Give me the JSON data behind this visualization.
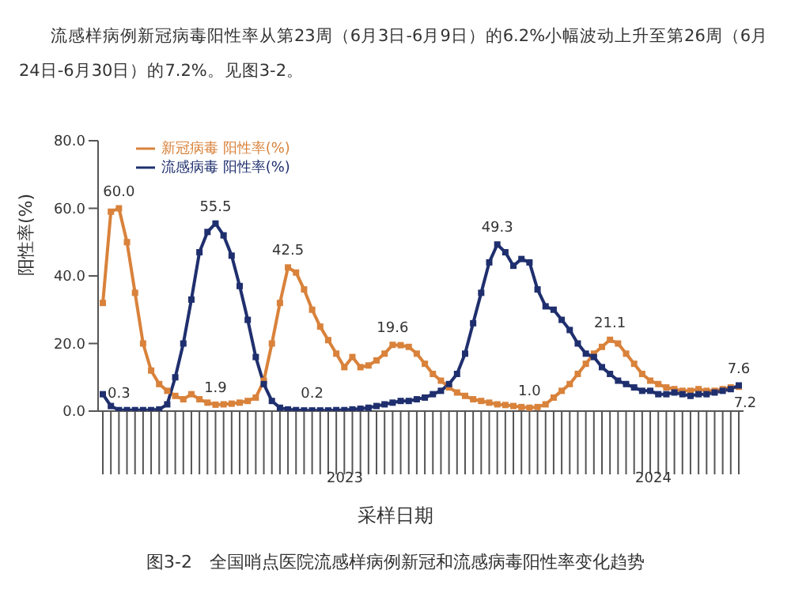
{
  "chart_data": {
    "type": "line",
    "title": "图3-2　全国哨点医院流感样病例新冠和流感病毒阳性率变化趋势",
    "xlabel": "采样日期",
    "ylabel": "阳性率(%)",
    "annotations": [
      "流感样病例新冠病毒阳性率从第23周（6月3日-6月9日）的6.2%小幅波动上升至第26周（6月24日-6月30日）的7.2%。见图3-2。",
      "2023",
      "2024"
    ],
    "categories": [
      null,
      null,
      null,
      null,
      null,
      null,
      null,
      null,
      null,
      null,
      null,
      null,
      null,
      null,
      null,
      null,
      null,
      null,
      null,
      null,
      null,
      null,
      null,
      null,
      null,
      null,
      null,
      null,
      null,
      null,
      null,
      null,
      null,
      null,
      null,
      null,
      null,
      null,
      null,
      null,
      null,
      null,
      null,
      null,
      null,
      null,
      null,
      null,
      null,
      null,
      null,
      null,
      null,
      null,
      null,
      null,
      null,
      null,
      null,
      null,
      null,
      null,
      null,
      null,
      null,
      null,
      null,
      null,
      null,
      null,
      null,
      null,
      null,
      null,
      null,
      null,
      null,
      null,
      null,
      null
    ],
    "series": [
      {
        "name": "新冠病毒 阳性率(%)",
        "color": "#d9823b",
        "values": [
          32,
          59,
          60,
          50,
          35,
          20,
          12,
          8,
          6,
          4.5,
          3.5,
          5,
          3.5,
          2.5,
          1.9,
          2,
          2.2,
          2.5,
          3,
          4,
          9,
          20,
          32,
          42.5,
          41,
          36,
          30,
          25,
          21,
          17,
          13,
          16,
          13,
          13.5,
          15,
          17,
          19.6,
          19.5,
          19,
          17,
          14,
          11,
          9,
          7,
          5.5,
          4.5,
          3.5,
          3,
          2.5,
          2,
          1.8,
          1.5,
          1.2,
          1.0,
          1.2,
          2,
          4,
          6,
          8,
          11,
          14,
          17,
          19,
          21.1,
          20,
          17,
          14,
          11,
          9,
          8,
          7,
          6.5,
          6,
          6,
          6.5,
          6,
          6,
          6.5,
          7,
          7.2
        ],
        "value_labels": [
          null,
          null,
          "60.0",
          null,
          null,
          null,
          null,
          null,
          null,
          null,
          null,
          null,
          null,
          null,
          "1.9",
          null,
          null,
          null,
          null,
          null,
          null,
          null,
          null,
          "42.5",
          null,
          null,
          null,
          null,
          null,
          null,
          null,
          null,
          null,
          null,
          null,
          null,
          "19.6",
          null,
          null,
          null,
          null,
          null,
          null,
          null,
          null,
          null,
          null,
          null,
          null,
          null,
          null,
          null,
          null,
          "1.0",
          null,
          null,
          null,
          null,
          null,
          null,
          null,
          null,
          null,
          "21.1",
          null,
          null,
          null,
          null,
          null,
          null,
          null,
          null,
          null,
          null,
          null,
          null,
          null,
          null,
          null,
          "7.2"
        ]
      },
      {
        "name": "流感病毒 阳性率(%)",
        "color": "#1f2f6e",
        "values": [
          5,
          1.5,
          0.3,
          0.3,
          0.3,
          0.3,
          0.3,
          0.5,
          2,
          10,
          20,
          33,
          47,
          53,
          55.5,
          52,
          46,
          37,
          27,
          16,
          8,
          3,
          1,
          0.5,
          0.3,
          0.2,
          0.2,
          0.2,
          0.2,
          0.3,
          0.3,
          0.5,
          0.7,
          1,
          1.5,
          2,
          2.5,
          3,
          3,
          3.5,
          4,
          5,
          6,
          8,
          11,
          17,
          26,
          35,
          44,
          49.3,
          47,
          43,
          45,
          44,
          36,
          31,
          30,
          27,
          24,
          20,
          17,
          16,
          13,
          11,
          9,
          8,
          7,
          6,
          6,
          5,
          5,
          5.5,
          5,
          4.5,
          5,
          5,
          5.5,
          6,
          6.5,
          7.6
        ],
        "value_labels": [
          null,
          null,
          "0.3",
          null,
          null,
          null,
          null,
          null,
          null,
          null,
          null,
          null,
          null,
          null,
          "55.5",
          null,
          null,
          null,
          null,
          null,
          null,
          null,
          null,
          null,
          null,
          null,
          "0.2",
          null,
          null,
          null,
          null,
          null,
          null,
          null,
          null,
          null,
          null,
          null,
          null,
          null,
          null,
          null,
          null,
          null,
          null,
          null,
          null,
          null,
          null,
          "49.3",
          null,
          null,
          null,
          null,
          null,
          null,
          null,
          null,
          null,
          null,
          null,
          null,
          null,
          null,
          null,
          null,
          null,
          null,
          null,
          null,
          null,
          null,
          null,
          null,
          null,
          null,
          null,
          null,
          null,
          "7.6"
        ]
      }
    ],
    "ylim": [
      0,
      80
    ],
    "yticks": [
      {
        "value": 0,
        "label": "0.0"
      },
      {
        "value": 20,
        "label": "20.0"
      },
      {
        "value": 40,
        "label": "40.0"
      },
      {
        "value": 60,
        "label": "60.0"
      },
      {
        "value": 80,
        "label": "80.0"
      }
    ],
    "grid": false,
    "legend": "top left",
    "marker": "square",
    "line_style": "solid"
  }
}
